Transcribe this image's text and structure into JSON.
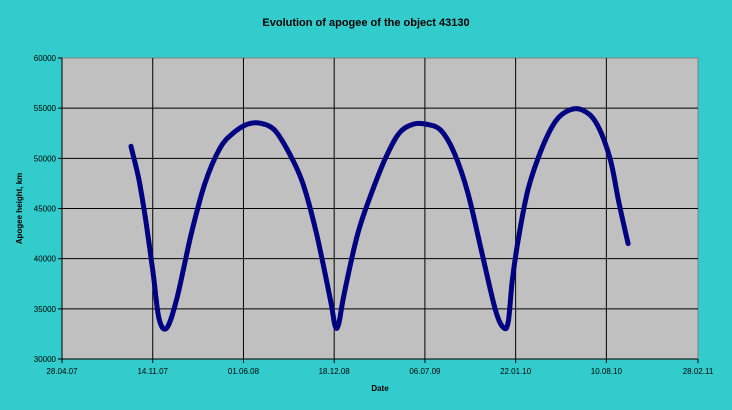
{
  "chart_data": {
    "type": "line",
    "title": "Evolution of apogee of the object 43130",
    "xlabel": "Date",
    "ylabel": "Apogee height, km",
    "x_ticks": [
      "28.04.07",
      "14.11.07",
      "01.06.08",
      "18.12.08",
      "06.07.09",
      "22.01.10",
      "10.08.10",
      "28.02.11"
    ],
    "ylim": [
      30000,
      60000
    ],
    "y_ticks": [
      30000,
      35000,
      40000,
      45000,
      50000,
      55000,
      60000
    ],
    "grid": true,
    "legend": "none",
    "colors": {
      "series": "#000080",
      "plot_bg": "#C0C0C0",
      "page_bg": "#33CCCC"
    },
    "series": [
      {
        "x": [
          "27.09.07",
          "14.10.07",
          "29.10.07",
          "15.11.07",
          "28.11.07",
          "15.12.07",
          "06.01.08",
          "07.02.08",
          "08.03.08",
          "10.04.08",
          "09.05.08",
          "10.06.08",
          "08.07.08",
          "09.08.08",
          "10.09.08",
          "10.10.08",
          "09.11.08",
          "10.12.08",
          "20.12.08",
          "28.12.08",
          "09.01.09",
          "08.02.09",
          "10.03.09",
          "10.04.09",
          "10.05.09",
          "10.06.09",
          "09.07.09",
          "10.08.09",
          "09.09.09",
          "09.10.09",
          "09.11.09",
          "09.12.09",
          "27.12.09",
          "06.01.10",
          "15.01.10",
          "30.01.10",
          "19.02.10",
          "21.03.10",
          "20.04.10",
          "20.05.10",
          "19.06.10",
          "19.07.10",
          "18.08.10",
          "07.09.10",
          "27.09.10"
        ],
        "y": [
          51200,
          48000,
          44000,
          38500,
          34000,
          33100,
          36000,
          42500,
          47500,
          51000,
          52500,
          53400,
          53500,
          52800,
          50500,
          47500,
          42500,
          35800,
          33300,
          33500,
          36500,
          42500,
          46500,
          50000,
          52500,
          53400,
          53400,
          52800,
          50500,
          46500,
          40500,
          34800,
          33100,
          33800,
          38000,
          42500,
          47000,
          51000,
          53700,
          54800,
          54800,
          53500,
          50000,
          45500,
          41500
        ]
      }
    ]
  }
}
